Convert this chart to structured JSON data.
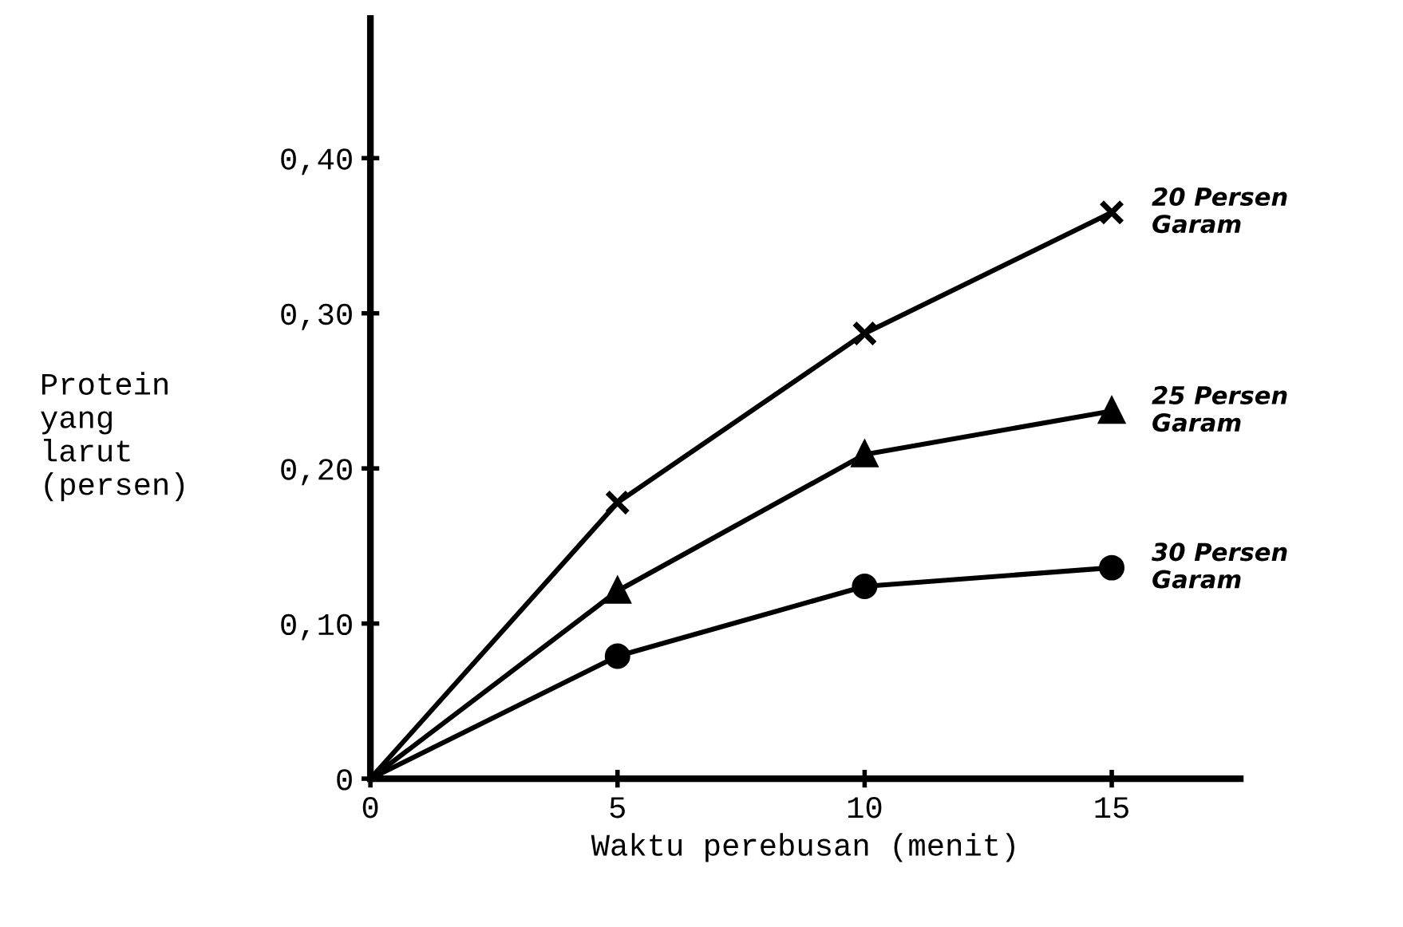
{
  "chart_data": {
    "type": "line",
    "xlabel": "Waktu perebusan (menit)",
    "ylabel": "Protein\nyang\nlarut\n(persen)",
    "x": [
      0,
      5,
      10,
      15
    ],
    "series": [
      {
        "name": "20 Persen\nGaram",
        "color": "#000000",
        "marker": "cross",
        "values": [
          0,
          0.178,
          0.287,
          0.365
        ]
      },
      {
        "name": "25 Persen\nGaram",
        "color": "#000000",
        "marker": "triangle",
        "values": [
          0,
          0.121,
          0.209,
          0.237
        ]
      },
      {
        "name": "30 Persen\nGaram",
        "color": "#000000",
        "marker": "circle",
        "values": [
          0,
          0.079,
          0.124,
          0.136
        ]
      }
    ],
    "xlim": [
      0,
      17.6
    ],
    "ylim": [
      0,
      0.49
    ],
    "xticks": [
      0,
      5,
      10,
      15
    ],
    "yticks": [
      {
        "value": 0,
        "label": "0"
      },
      {
        "value": 0.1,
        "label": "0,10"
      },
      {
        "value": 0.2,
        "label": "0,20"
      },
      {
        "value": 0.3,
        "label": "0,30"
      },
      {
        "value": 0.4,
        "label": "0,40"
      }
    ],
    "grid": false,
    "legend": false,
    "line_style": "solid"
  }
}
